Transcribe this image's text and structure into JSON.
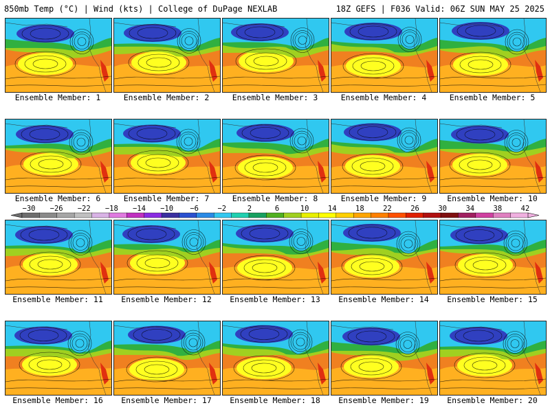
{
  "header": {
    "left_title": "850mb Temp (°C) | Wind (kts) | College of DuPage NEXLAB",
    "right_title": "18Z GEFS | F036 Valid: 06Z SUN MAY 25 2025"
  },
  "panels": [
    {
      "label": "Ensemble Member: 1"
    },
    {
      "label": "Ensemble Member: 2"
    },
    {
      "label": "Ensemble Member: 3"
    },
    {
      "label": "Ensemble Member: 4"
    },
    {
      "label": "Ensemble Member: 5"
    },
    {
      "label": "Ensemble Member: 6"
    },
    {
      "label": "Ensemble Member: 7"
    },
    {
      "label": "Ensemble Member: 8"
    },
    {
      "label": "Ensemble Member: 9"
    },
    {
      "label": "Ensemble Member: 10"
    },
    {
      "label": "Ensemble Member: 11"
    },
    {
      "label": "Ensemble Member: 12"
    },
    {
      "label": "Ensemble Member: 13"
    },
    {
      "label": "Ensemble Member: 14"
    },
    {
      "label": "Ensemble Member: 15"
    },
    {
      "label": "Ensemble Member: 16"
    },
    {
      "label": "Ensemble Member: 17"
    },
    {
      "label": "Ensemble Member: 18"
    },
    {
      "label": "Ensemble Member: 19"
    },
    {
      "label": "Ensemble Member: 20"
    }
  ],
  "colorbar": {
    "labels": [
      "−30",
      "−26",
      "−22",
      "−18",
      "−14",
      "−10",
      "−6",
      "−2",
      "2",
      "6",
      "10",
      "14",
      "18",
      "22",
      "26",
      "30",
      "34",
      "38",
      "42"
    ],
    "colors": [
      "#6e6e6e",
      "#8a8a8a",
      "#a6a6a6",
      "#c0c0c0",
      "#d9b3e6",
      "#e07ae0",
      "#c030c0",
      "#8a2be2",
      "#3a2fa0",
      "#2a50d0",
      "#2a8ae6",
      "#33c8f0",
      "#20d0b0",
      "#18a060",
      "#50b020",
      "#a0d020",
      "#e8f000",
      "#ffff00",
      "#ffd000",
      "#ffa500",
      "#ff8000",
      "#ff5000",
      "#e02000",
      "#b01010",
      "#801010",
      "#a02060",
      "#d040a0",
      "#e080c0",
      "#f0b0e0"
    ]
  },
  "map_colors": {
    "cold": "#3040c0",
    "cyan": "#30c8f0",
    "green": "#30b040",
    "lime": "#a0d020",
    "yellow": "#ffff20",
    "orange": "#ffb020",
    "warm": "#f08020",
    "hot": "#e03010"
  }
}
